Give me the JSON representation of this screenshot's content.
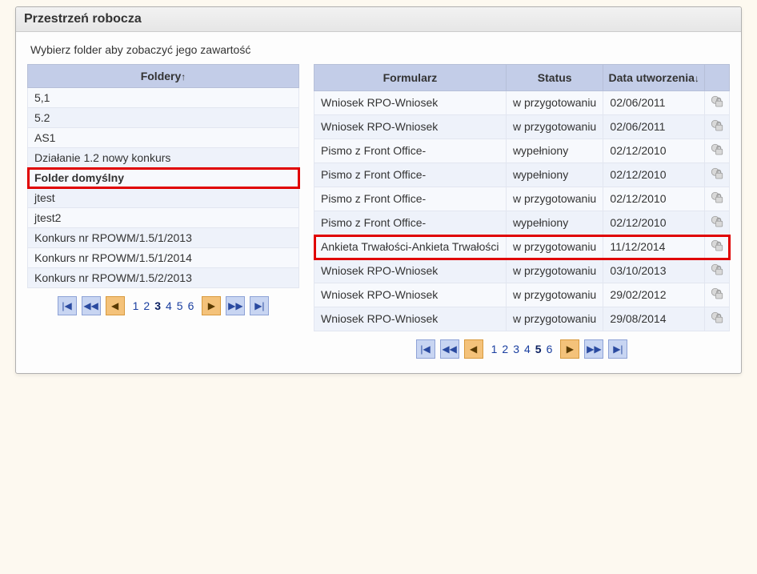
{
  "panel": {
    "title": "Przestrzeń robocza"
  },
  "hint": "Wybierz folder aby zobaczyć jego zawartość",
  "folders": {
    "header": "Foldery",
    "sort": "↑",
    "items": [
      {
        "name": "5,1"
      },
      {
        "name": "5.2"
      },
      {
        "name": "AS1"
      },
      {
        "name": "Działanie 1.2 nowy konkurs"
      },
      {
        "name": "Folder domyślny",
        "selected": true,
        "highlight": true
      },
      {
        "name": "jtest"
      },
      {
        "name": "jtest2"
      },
      {
        "name": "Konkurs nr RPOWM/1.5/1/2013"
      },
      {
        "name": "Konkurs nr RPOWM/1.5/1/2014"
      },
      {
        "name": "Konkurs nr RPOWM/1.5/2/2013"
      }
    ],
    "pager": {
      "pages": [
        "1",
        "2",
        "3",
        "4",
        "5",
        "6"
      ],
      "current": "3"
    }
  },
  "docs": {
    "headers": {
      "form": "Formularz",
      "status": "Status",
      "created": "Data utworzenia",
      "sort": "↓"
    },
    "rows": [
      {
        "form": "Wniosek RPO-Wniosek",
        "status": "w przygotowaniu",
        "date": "02/06/2011"
      },
      {
        "form": "Wniosek RPO-Wniosek",
        "status": "w przygotowaniu",
        "date": "02/06/2011"
      },
      {
        "form": "Pismo z Front Office-",
        "status": "wypełniony",
        "date": "02/12/2010"
      },
      {
        "form": "Pismo z Front Office-",
        "status": "wypełniony",
        "date": "02/12/2010"
      },
      {
        "form": "Pismo z Front Office-",
        "status": "w przygotowaniu",
        "date": "02/12/2010"
      },
      {
        "form": "Pismo z Front Office-",
        "status": "wypełniony",
        "date": "02/12/2010"
      },
      {
        "form": "Ankieta Trwałości-Ankieta Trwałości",
        "status": "w przygotowaniu",
        "date": "11/12/2014",
        "highlight": true
      },
      {
        "form": "Wniosek RPO-Wniosek",
        "status": "w przygotowaniu",
        "date": "03/10/2013"
      },
      {
        "form": "Wniosek RPO-Wniosek",
        "status": "w przygotowaniu",
        "date": "29/02/2012"
      },
      {
        "form": "Wniosek RPO-Wniosek",
        "status": "w przygotowaniu",
        "date": "29/08/2014"
      }
    ],
    "pager": {
      "pages": [
        "1",
        "2",
        "3",
        "4",
        "5",
        "6"
      ],
      "current": "5"
    }
  },
  "icons": {
    "first": "|◀",
    "prev2": "◀◀",
    "prev": "◀",
    "next": "▶",
    "next2": "▶▶",
    "last": "▶|"
  }
}
